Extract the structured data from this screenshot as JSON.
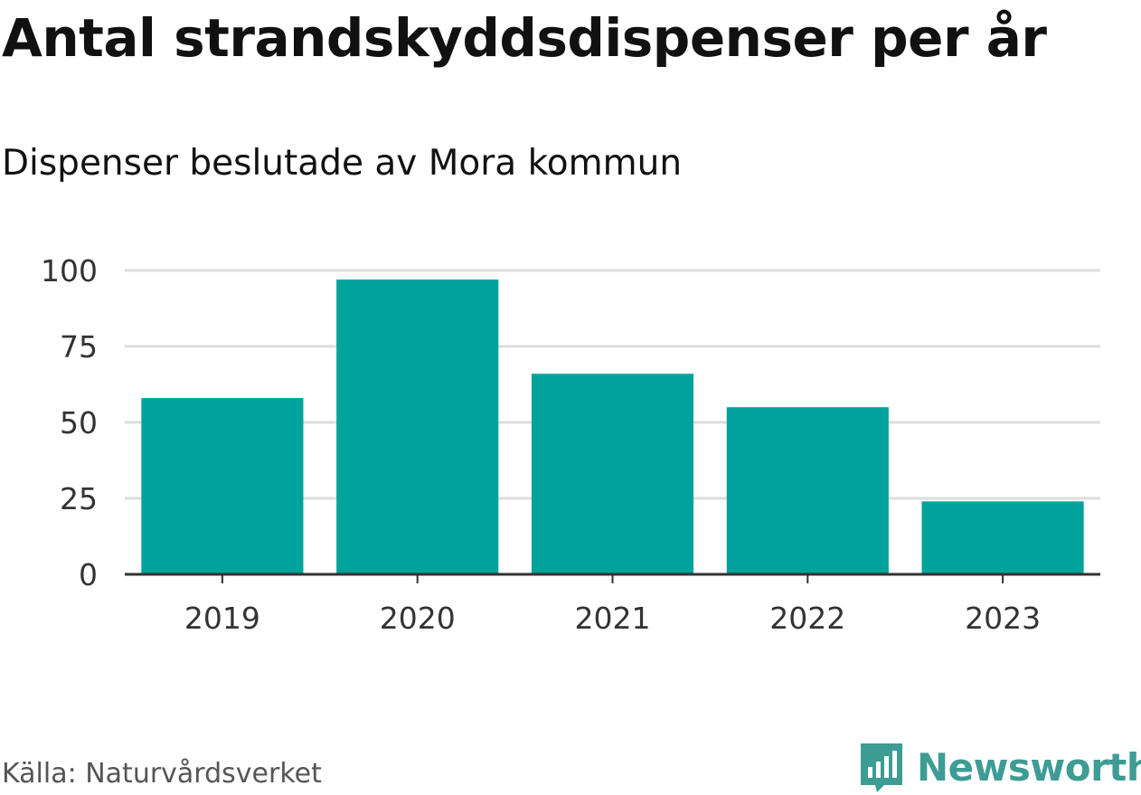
{
  "chart_data": {
    "type": "bar",
    "title": "Antal strandskyddsdispenser per år",
    "subtitle": "Dispenser beslutade av Mora kommun",
    "categories": [
      "2019",
      "2020",
      "2021",
      "2022",
      "2023"
    ],
    "values": [
      58,
      97,
      66,
      55,
      24
    ],
    "yticks": [
      0,
      25,
      50,
      75,
      100
    ],
    "ylim": [
      0,
      100
    ],
    "xlabel": "",
    "ylabel": "",
    "bar_color": "#00a39b",
    "grid": true
  },
  "source": "Källa: Naturvårdsverket",
  "brand": {
    "name": "Newsworthy",
    "icon": "newsworthy-logo-icon",
    "color": "#3d9c94"
  }
}
